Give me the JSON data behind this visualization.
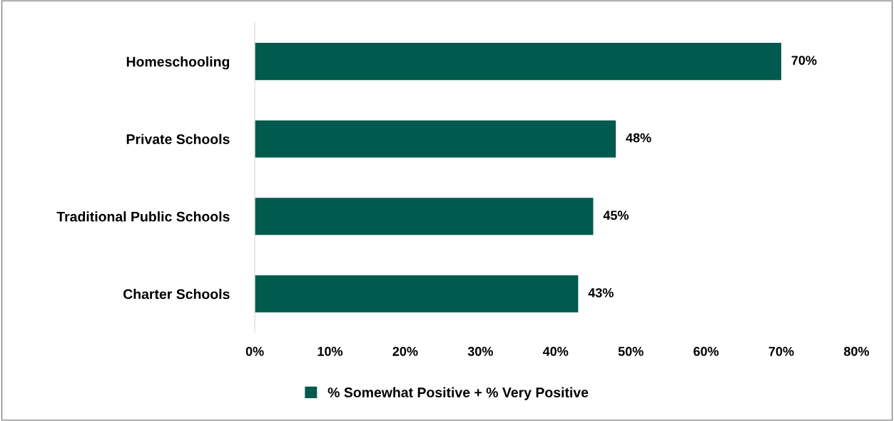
{
  "chart_data": {
    "type": "bar",
    "orientation": "horizontal",
    "categories": [
      "Homeschooling",
      "Private Schools",
      "Traditional Public Schools",
      "Charter Schools"
    ],
    "series": [
      {
        "name": "% Somewhat Positive + % Very Positive",
        "color": "#005a4e",
        "values": [
          70,
          48,
          45,
          43
        ],
        "value_labels": [
          "70%",
          "48%",
          "45%",
          "43%"
        ]
      }
    ],
    "xlim": [
      0,
      80
    ],
    "xticks": [
      {
        "value": 0,
        "label": "0%"
      },
      {
        "value": 10,
        "label": "10%"
      },
      {
        "value": 20,
        "label": "20%"
      },
      {
        "value": 30,
        "label": "30%"
      },
      {
        "value": 40,
        "label": "40%"
      },
      {
        "value": 50,
        "label": "50%"
      },
      {
        "value": 60,
        "label": "60%"
      },
      {
        "value": 70,
        "label": "70%"
      },
      {
        "value": 80,
        "label": "80%"
      }
    ],
    "grid": false,
    "legend": "bottom"
  }
}
